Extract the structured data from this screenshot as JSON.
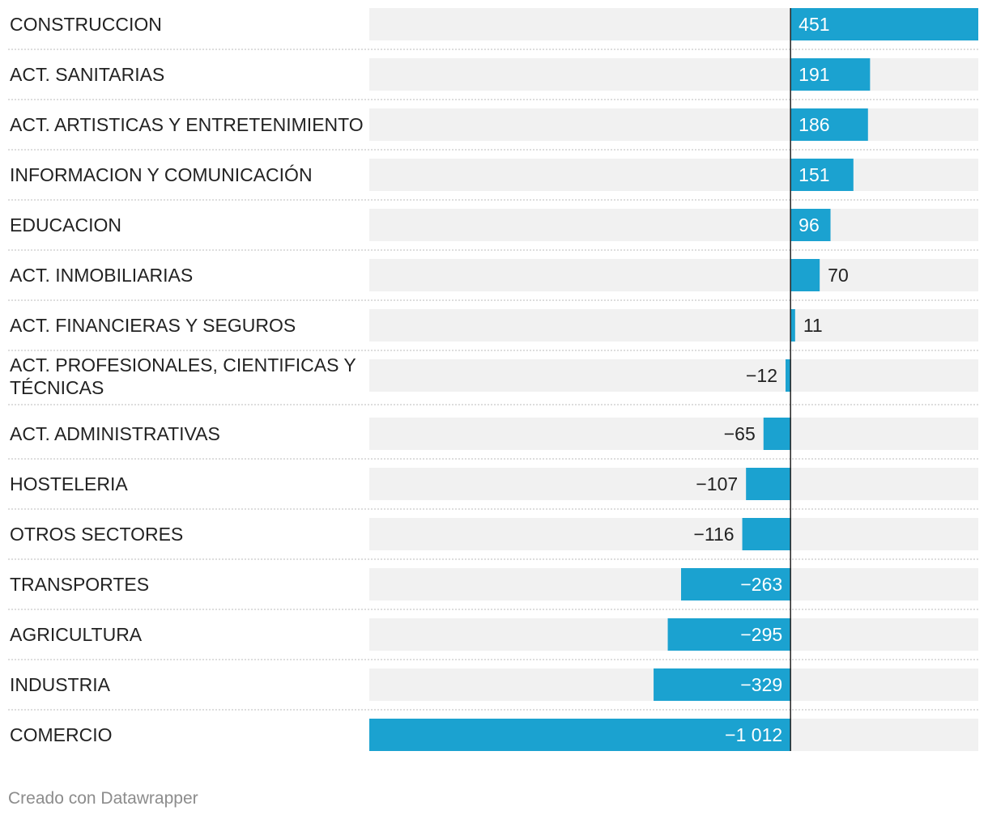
{
  "chart_data": {
    "type": "bar",
    "orientation": "horizontal",
    "categories": [
      "CONSTRUCCION",
      "ACT. SANITARIAS",
      "ACT. ARTISTICAS Y ENTRETENIMIENTO",
      "INFORMACION Y COMUNICACIÓN",
      "EDUCACION",
      "ACT. INMOBILIARIAS",
      "ACT. FINANCIERAS Y SEGUROS",
      "ACT. PROFESIONALES, CIENTIFICAS Y TÉCNICAS",
      "ACT. ADMINISTRATIVAS",
      "HOSTELERIA",
      "OTROS SECTORES",
      "TRANSPORTES",
      "AGRICULTURA",
      "INDUSTRIA",
      "COMERCIO"
    ],
    "values": [
      451,
      191,
      186,
      151,
      96,
      70,
      11,
      -12,
      -65,
      -107,
      -116,
      -263,
      -295,
      -329,
      -1012
    ],
    "value_labels": [
      "451",
      "191",
      "186",
      "151",
      "96",
      "70",
      "11",
      "−12",
      "−65",
      "−107",
      "−116",
      "−263",
      "−295",
      "−329",
      "−1 012"
    ],
    "xlim": [
      -1012,
      451
    ],
    "title": "",
    "xlabel": "",
    "ylabel": ""
  },
  "colors": {
    "bar": "#1ba2d0",
    "track": "#f1f1f1",
    "axis": "#222222",
    "label": "#222222",
    "label_on_bar": "#ffffff",
    "separator": "#d2d2d2"
  },
  "footer": {
    "credit": "Creado con Datawrapper"
  }
}
